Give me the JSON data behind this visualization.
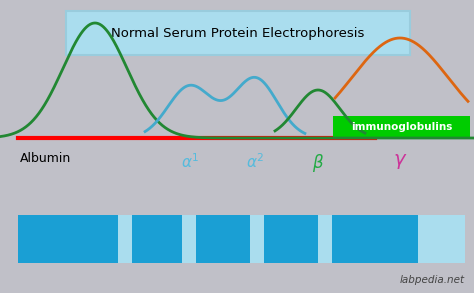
{
  "title": "Normal Serum Protein Electrophoresis",
  "title_bg": "#aaddee",
  "bg_color": "#c0c0c8",
  "baseline_color": "#ff0000",
  "immunoglobulins_box_color": "#00cc00",
  "immunoglobulins_text": "immunoglobulins",
  "albumin_label": "Albumin",
  "label_colors": [
    "#55bbdd",
    "#55bbdd",
    "#22aa44",
    "#cc3399"
  ],
  "peak_albumin_color": "#228833",
  "peak_alpha_color": "#44aacc",
  "peak_beta_color": "#228833",
  "peak_gamma_color": "#dd6611",
  "watermark": "labpedia.net",
  "dark_blue": "#1a9fd4",
  "light_blue": "#aaddee"
}
